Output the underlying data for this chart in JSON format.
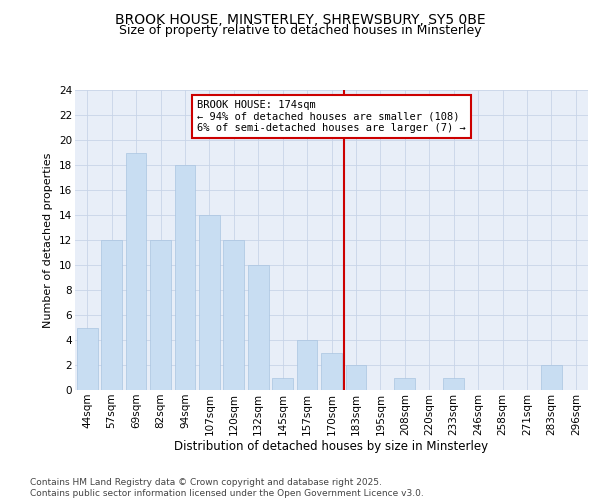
{
  "title1": "BROOK HOUSE, MINSTERLEY, SHREWSBURY, SY5 0BE",
  "title2": "Size of property relative to detached houses in Minsterley",
  "xlabel": "Distribution of detached houses by size in Minsterley",
  "ylabel": "Number of detached properties",
  "categories": [
    "44sqm",
    "57sqm",
    "69sqm",
    "82sqm",
    "94sqm",
    "107sqm",
    "120sqm",
    "132sqm",
    "145sqm",
    "157sqm",
    "170sqm",
    "183sqm",
    "195sqm",
    "208sqm",
    "220sqm",
    "233sqm",
    "246sqm",
    "258sqm",
    "271sqm",
    "283sqm",
    "296sqm"
  ],
  "values": [
    5,
    12,
    19,
    12,
    18,
    14,
    12,
    10,
    1,
    4,
    3,
    2,
    0,
    1,
    0,
    1,
    0,
    0,
    0,
    2,
    0
  ],
  "bar_color": "#c8ddf2",
  "bar_edgecolor": "#aac4e0",
  "grid_color": "#c8d4e8",
  "bg_color": "#e8eef8",
  "annotation_text": "BROOK HOUSE: 174sqm\n← 94% of detached houses are smaller (108)\n6% of semi-detached houses are larger (7) →",
  "annotation_box_edgecolor": "#cc0000",
  "vline_color": "#cc0000",
  "vline_x": 10.5,
  "ylim": [
    0,
    24
  ],
  "yticks": [
    0,
    2,
    4,
    6,
    8,
    10,
    12,
    14,
    16,
    18,
    20,
    22,
    24
  ],
  "footnote": "Contains HM Land Registry data © Crown copyright and database right 2025.\nContains public sector information licensed under the Open Government Licence v3.0.",
  "title1_fontsize": 10,
  "title2_fontsize": 9,
  "xlabel_fontsize": 8.5,
  "ylabel_fontsize": 8,
  "tick_fontsize": 7.5,
  "annot_fontsize": 7.5,
  "footnote_fontsize": 6.5
}
